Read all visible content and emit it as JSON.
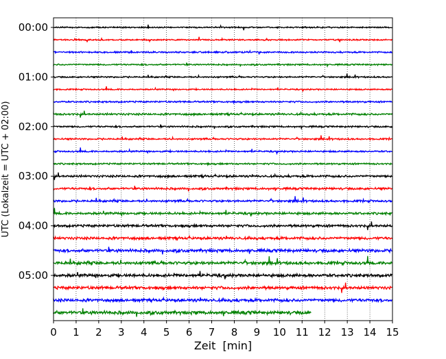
{
  "chart_data": {
    "type": "line",
    "title": "",
    "xlabel": "Zeit  [min]",
    "ylabel": "UTC (Lokalzeit = UTC + 02:00)",
    "xlim": [
      0,
      15
    ],
    "x_ticks": [
      "0",
      "1",
      "2",
      "3",
      "4",
      "5",
      "6",
      "7",
      "8",
      "9",
      "10",
      "11",
      "12",
      "13",
      "14",
      "15"
    ],
    "y_tick_labels": [
      {
        "label": "00:00",
        "row": 0
      },
      {
        "label": "01:00",
        "row": 4
      },
      {
        "label": "02:00",
        "row": 8
      },
      {
        "label": "03:00",
        "row": 12
      },
      {
        "label": "04:00",
        "row": 16
      },
      {
        "label": "05:00",
        "row": 20
      }
    ],
    "grid": "vertical dotted lines at each minute",
    "trace_minutes": 15,
    "colors": [
      "#000000",
      "#ff0000",
      "#0000ff",
      "#008000"
    ],
    "traces": [
      {
        "start": "00:00",
        "color": "#000000",
        "end_min": 15,
        "noise": 0.8
      },
      {
        "start": "00:15",
        "color": "#ff0000",
        "end_min": 15,
        "noise": 0.8
      },
      {
        "start": "00:30",
        "color": "#0000ff",
        "end_min": 15,
        "noise": 0.9
      },
      {
        "start": "00:45",
        "color": "#008000",
        "end_min": 15,
        "noise": 0.9
      },
      {
        "start": "01:00",
        "color": "#000000",
        "end_min": 15,
        "noise": 0.9
      },
      {
        "start": "01:15",
        "color": "#ff0000",
        "end_min": 15,
        "noise": 0.8
      },
      {
        "start": "01:30",
        "color": "#0000ff",
        "end_min": 15,
        "noise": 1.0
      },
      {
        "start": "01:45",
        "color": "#008000",
        "end_min": 15,
        "noise": 1.2
      },
      {
        "start": "02:00",
        "color": "#000000",
        "end_min": 15,
        "noise": 1.0
      },
      {
        "start": "02:15",
        "color": "#ff0000",
        "end_min": 15,
        "noise": 1.0
      },
      {
        "start": "02:30",
        "color": "#0000ff",
        "end_min": 15,
        "noise": 1.0
      },
      {
        "start": "02:45",
        "color": "#008000",
        "end_min": 15,
        "noise": 1.0
      },
      {
        "start": "03:00",
        "color": "#000000",
        "end_min": 15,
        "noise": 1.3
      },
      {
        "start": "03:15",
        "color": "#ff0000",
        "end_min": 15,
        "noise": 1.3
      },
      {
        "start": "03:30",
        "color": "#0000ff",
        "end_min": 15,
        "noise": 1.3
      },
      {
        "start": "03:45",
        "color": "#008000",
        "end_min": 15,
        "noise": 1.4
      },
      {
        "start": "04:00",
        "color": "#000000",
        "end_min": 15,
        "noise": 1.5
      },
      {
        "start": "04:15",
        "color": "#ff0000",
        "end_min": 15,
        "noise": 1.6
      },
      {
        "start": "04:30",
        "color": "#0000ff",
        "end_min": 15,
        "noise": 1.8
      },
      {
        "start": "04:45",
        "color": "#008000",
        "end_min": 15,
        "noise": 1.8
      },
      {
        "start": "05:00",
        "color": "#000000",
        "end_min": 15,
        "noise": 1.8
      },
      {
        "start": "05:15",
        "color": "#ff0000",
        "end_min": 15,
        "noise": 1.8
      },
      {
        "start": "05:30",
        "color": "#0000ff",
        "end_min": 15,
        "noise": 1.8
      },
      {
        "start": "05:45",
        "color": "#008000",
        "end_min": 11.4,
        "noise": 2.0
      }
    ]
  }
}
